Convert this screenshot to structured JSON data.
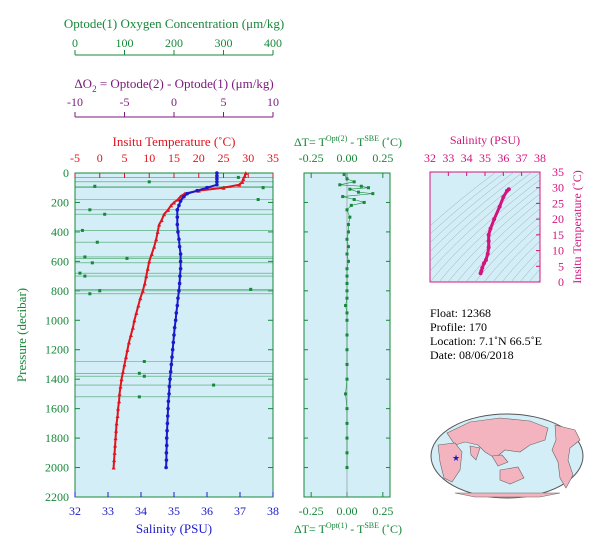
{
  "colors": {
    "green": "#17883a",
    "purple": "#7a1a7a",
    "red": "#e0141e",
    "blue": "#1a1acc",
    "magenta": "#d4147e",
    "plot_bg": "#d4eef7",
    "land": "#f4b4bf",
    "ocean": "#d4eef7"
  },
  "axes": {
    "oxygen": {
      "label": "Optode(1) Oxygen Concentration (μm/kg)",
      "ticks": [
        "0",
        "100",
        "200",
        "300",
        "400"
      ]
    },
    "delta_o2": {
      "label_prefix": "ΔO",
      "label_sub": "2",
      "label_rest": " = Optode(2) - Optode(1)   (μm/kg)",
      "ticks": [
        "-10",
        "-5",
        "0",
        "5",
        "10"
      ]
    },
    "temperature": {
      "label": "Insitu Temperature (˚C)",
      "ticks": [
        "-5",
        "0",
        "5",
        "10",
        "15",
        "20",
        "25",
        "30",
        "35"
      ]
    },
    "salinity_bottom": {
      "label": "Salinity (PSU)",
      "ticks": [
        "32",
        "33",
        "34",
        "35",
        "36",
        "37",
        "38"
      ]
    },
    "pressure": {
      "label": "Pressure (decibar)",
      "ticks": [
        "0",
        "200",
        "400",
        "600",
        "800",
        "1000",
        "1200",
        "1400",
        "1600",
        "1800",
        "2000",
        "2200"
      ]
    },
    "dt_top": {
      "label_a": "ΔT= T",
      "label_sup1": "Opt(2)",
      "label_b": " - T",
      "label_sup2": "SBE",
      "label_c": " (˚C)",
      "ticks": [
        "-0.25",
        "0.00",
        "0.25"
      ]
    },
    "dt_bottom": {
      "label_a": "ΔT= T",
      "label_sup1": "Opt(1)",
      "label_b": " - T",
      "label_sup2": "SBE",
      "label_c": " (˚C)",
      "ticks": [
        "-0.25",
        "0.00",
        "0.25"
      ]
    },
    "inset_salinity": {
      "label": "Salinity (PSU)",
      "ticks": [
        "32",
        "33",
        "34",
        "35",
        "36",
        "37",
        "38"
      ]
    },
    "inset_temperature": {
      "label": "Insitu Temperature (˚C)",
      "ticks": [
        "0",
        "5",
        "10",
        "15",
        "20",
        "25",
        "30",
        "35"
      ]
    }
  },
  "info": {
    "float": "Float:  12368",
    "profile": "Profile:  170",
    "location": "Location:  7.1˚N  66.5˚E",
    "date": "Date:  08/06/2018"
  },
  "chart_data": [
    {
      "type": "line",
      "name": "main-profile",
      "ylim": [
        0,
        2200
      ],
      "series": [
        {
          "name": "Insitu Temperature",
          "axis": "temperature",
          "xlim": [
            -5,
            35
          ],
          "points": [
            [
              29.5,
              0
            ],
            [
              29.3,
              20
            ],
            [
              29.0,
              40
            ],
            [
              28.8,
              60
            ],
            [
              28.2,
              80
            ],
            [
              25.0,
              100
            ],
            [
              20.0,
              120
            ],
            [
              17.2,
              140
            ],
            [
              16.3,
              160
            ],
            [
              15.8,
              180
            ],
            [
              15.0,
              200
            ],
            [
              14.4,
              220
            ],
            [
              13.8,
              250
            ],
            [
              13.0,
              280
            ],
            [
              12.5,
              320
            ],
            [
              12.0,
              350
            ],
            [
              11.7,
              400
            ],
            [
              11.4,
              450
            ],
            [
              11.0,
              500
            ],
            [
              10.5,
              550
            ],
            [
              10.0,
              600
            ],
            [
              9.7,
              650
            ],
            [
              9.4,
              700
            ],
            [
              9.1,
              750
            ],
            [
              8.7,
              800
            ],
            [
              8.2,
              850
            ],
            [
              7.8,
              900
            ],
            [
              7.4,
              950
            ],
            [
              7.0,
              1000
            ],
            [
              6.7,
              1050
            ],
            [
              6.3,
              1100
            ],
            [
              5.9,
              1150
            ],
            [
              5.6,
              1200
            ],
            [
              5.3,
              1250
            ],
            [
              5.0,
              1300
            ],
            [
              4.7,
              1350
            ],
            [
              4.4,
              1400
            ],
            [
              4.2,
              1450
            ],
            [
              4.0,
              1500
            ],
            [
              3.9,
              1550
            ],
            [
              3.7,
              1600
            ],
            [
              3.6,
              1650
            ],
            [
              3.4,
              1700
            ],
            [
              3.3,
              1750
            ],
            [
              3.2,
              1800
            ],
            [
              3.1,
              1850
            ],
            [
              3.0,
              1900
            ],
            [
              2.9,
              1950
            ],
            [
              2.8,
              2000
            ]
          ]
        },
        {
          "name": "Salinity",
          "axis": "salinity",
          "xlim": [
            32,
            38
          ],
          "points": [
            [
              36.3,
              0
            ],
            [
              36.3,
              20
            ],
            [
              36.3,
              40
            ],
            [
              36.3,
              60
            ],
            [
              36.3,
              80
            ],
            [
              36.0,
              100
            ],
            [
              35.7,
              120
            ],
            [
              35.4,
              140
            ],
            [
              35.3,
              160
            ],
            [
              35.2,
              190
            ],
            [
              35.15,
              220
            ],
            [
              35.1,
              250
            ],
            [
              35.1,
              300
            ],
            [
              35.1,
              350
            ],
            [
              35.12,
              400
            ],
            [
              35.15,
              450
            ],
            [
              35.17,
              500
            ],
            [
              35.2,
              550
            ],
            [
              35.2,
              600
            ],
            [
              35.2,
              650
            ],
            [
              35.18,
              700
            ],
            [
              35.17,
              750
            ],
            [
              35.15,
              800
            ],
            [
              35.12,
              850
            ],
            [
              35.1,
              900
            ],
            [
              35.07,
              950
            ],
            [
              35.05,
              1000
            ],
            [
              35.02,
              1050
            ],
            [
              35.0,
              1100
            ],
            [
              34.98,
              1150
            ],
            [
              34.96,
              1200
            ],
            [
              34.94,
              1250
            ],
            [
              34.92,
              1300
            ],
            [
              34.9,
              1350
            ],
            [
              34.88,
              1400
            ],
            [
              34.86,
              1450
            ],
            [
              34.85,
              1500
            ],
            [
              34.83,
              1550
            ],
            [
              34.82,
              1600
            ],
            [
              34.81,
              1650
            ],
            [
              34.8,
              1700
            ],
            [
              34.79,
              1750
            ],
            [
              34.78,
              1800
            ],
            [
              34.78,
              1850
            ],
            [
              34.77,
              1900
            ],
            [
              34.77,
              1950
            ],
            [
              34.76,
              2000
            ]
          ]
        },
        {
          "name": "Optode(1) Oxygen Concentration",
          "axis": "oxygen",
          "xlim": [
            0,
            400
          ],
          "points": [
            [
              330,
              30
            ],
            [
              150,
              60
            ],
            [
              40,
              90
            ],
            [
              380,
              100
            ],
            [
              370,
              180
            ],
            [
              30,
              250
            ],
            [
              60,
              280
            ],
            [
              15,
              390
            ],
            [
              45,
              470
            ],
            [
              20,
              570
            ],
            [
              105,
              580
            ],
            [
              35,
              610
            ],
            [
              10,
              680
            ],
            [
              20,
              700
            ],
            [
              355,
              790
            ],
            [
              30,
              820
            ],
            [
              50,
              800
            ],
            [
              140,
              1280
            ],
            [
              130,
              1360
            ],
            [
              140,
              1380
            ],
            [
              280,
              1440
            ],
            [
              130,
              1520
            ]
          ]
        }
      ]
    },
    {
      "type": "scatter",
      "name": "delta-t",
      "xlim": [
        -0.3,
        0.3
      ],
      "ylim": [
        0,
        2200
      ],
      "series": [
        {
          "name": "ΔT Opt(1)-SBE",
          "points": [
            [
              -0.02,
              10
            ],
            [
              0.0,
              40
            ],
            [
              0.05,
              60
            ],
            [
              -0.05,
              80
            ],
            [
              0.1,
              90
            ],
            [
              0.15,
              100
            ],
            [
              0.02,
              110
            ],
            [
              0.08,
              130
            ],
            [
              0.18,
              140
            ],
            [
              -0.03,
              160
            ],
            [
              0.05,
              180
            ],
            [
              0.12,
              200
            ],
            [
              0.03,
              220
            ],
            [
              0.0,
              250
            ],
            [
              0.02,
              300
            ],
            [
              0.01,
              350
            ],
            [
              0.01,
              400
            ],
            [
              0.0,
              450
            ],
            [
              0.01,
              500
            ],
            [
              0.0,
              550
            ],
            [
              0.01,
              600
            ],
            [
              0.0,
              650
            ],
            [
              0.0,
              700
            ],
            [
              0.0,
              750
            ],
            [
              0.0,
              800
            ],
            [
              0.0,
              850
            ],
            [
              -0.01,
              900
            ],
            [
              0.0,
              950
            ],
            [
              0.0,
              1000
            ],
            [
              0.0,
              1100
            ],
            [
              0.0,
              1200
            ],
            [
              0.0,
              1300
            ],
            [
              0.0,
              1400
            ],
            [
              -0.01,
              1500
            ],
            [
              0.0,
              1600
            ],
            [
              0.0,
              1700
            ],
            [
              0.0,
              1800
            ],
            [
              0.0,
              1900
            ],
            [
              0.0,
              2000
            ]
          ]
        }
      ]
    },
    {
      "type": "line",
      "name": "ts-inset",
      "xlim": [
        32,
        38
      ],
      "ylim": [
        0,
        35
      ],
      "series": [
        {
          "name": "T-S",
          "points": [
            [
              36.3,
              29.5
            ],
            [
              36.2,
              29
            ],
            [
              36.0,
              27
            ],
            [
              35.8,
              24
            ],
            [
              35.5,
              20
            ],
            [
              35.3,
              17
            ],
            [
              35.2,
              15
            ],
            [
              35.2,
              13
            ],
            [
              35.2,
              11
            ],
            [
              35.15,
              9
            ],
            [
              35.05,
              7
            ],
            [
              34.95,
              6
            ],
            [
              34.85,
              4.5
            ],
            [
              34.8,
              3.5
            ],
            [
              34.76,
              2.8
            ]
          ]
        }
      ]
    }
  ]
}
